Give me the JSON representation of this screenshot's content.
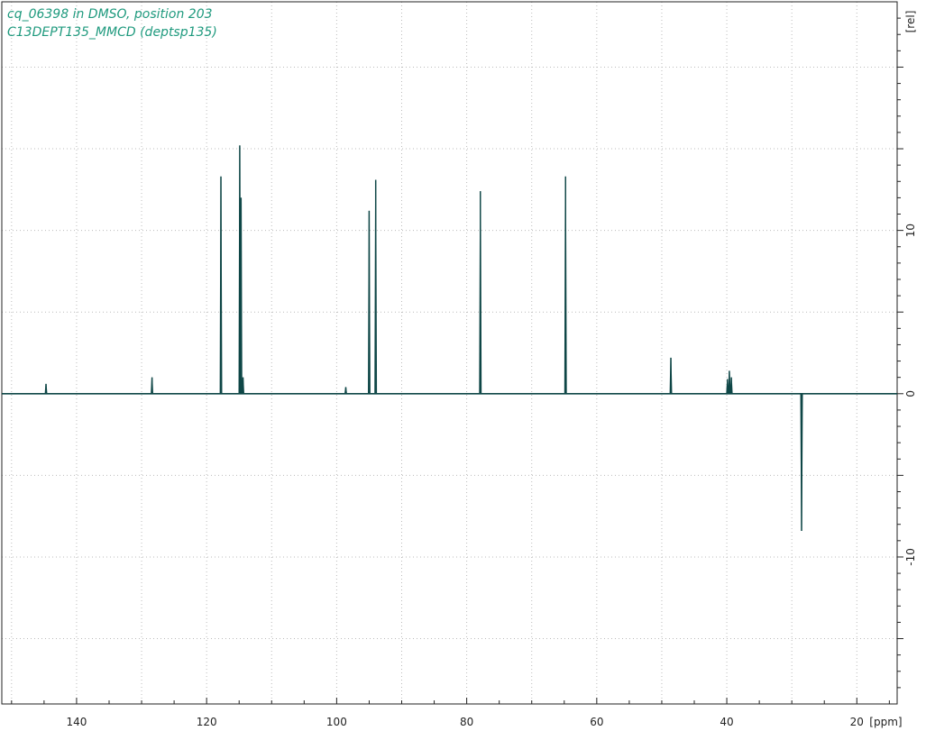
{
  "header": {
    "line1": "cq_06398 in DMSO, position 203",
    "line2": "C13DEPT135_MMCD (deptsp135)"
  },
  "colors": {
    "spectrum": "#0f4747",
    "title": "#1f9a7e",
    "grid": "#bbbbbb",
    "axis": "#222222"
  },
  "chart_data": {
    "type": "line",
    "xlabel": "[ppm]",
    "ylabel": "[rel]",
    "xlim": [
      151.5,
      13.8
    ],
    "ylim": [
      -19,
      24
    ],
    "x_ticks": [
      140,
      120,
      100,
      80,
      60,
      40,
      20
    ],
    "x_tick_labels": [
      "140",
      "120",
      "100",
      "80",
      "60",
      "40",
      "20"
    ],
    "y_ticks": [
      10,
      0,
      -10
    ],
    "y_tick_labels": [
      "10",
      "0",
      "-10"
    ],
    "grid": true,
    "peaks": [
      {
        "ppm": 144.7,
        "intensity": 0.6
      },
      {
        "ppm": 128.4,
        "intensity": 1.0
      },
      {
        "ppm": 117.8,
        "intensity": 13.3
      },
      {
        "ppm": 114.9,
        "intensity": 15.2
      },
      {
        "ppm": 114.7,
        "intensity": 12.0
      },
      {
        "ppm": 114.4,
        "intensity": 1.0
      },
      {
        "ppm": 98.6,
        "intensity": 0.4
      },
      {
        "ppm": 95.0,
        "intensity": 11.2
      },
      {
        "ppm": 94.0,
        "intensity": 13.1
      },
      {
        "ppm": 77.9,
        "intensity": 12.4
      },
      {
        "ppm": 64.8,
        "intensity": 13.3
      },
      {
        "ppm": 48.6,
        "intensity": 2.2
      },
      {
        "ppm": 39.6,
        "intensity": 1.4
      },
      {
        "ppm": 39.3,
        "intensity": 1.0
      },
      {
        "ppm": 39.9,
        "intensity": 0.9
      },
      {
        "ppm": 28.5,
        "intensity": -8.4
      }
    ]
  }
}
